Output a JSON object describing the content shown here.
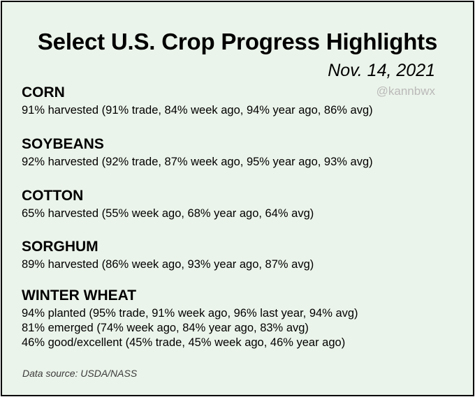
{
  "title": "Select U.S. Crop Progress Highlights",
  "date": "Nov. 14, 2021",
  "handle": "@kannbwx",
  "sections": [
    {
      "name": "CORN",
      "lines": [
        "91% harvested (91% trade, 84% week ago, 94% year ago, 86% avg)"
      ]
    },
    {
      "name": "SOYBEANS",
      "lines": [
        "92% harvested (92% trade, 87% week ago, 95% year ago, 93% avg)"
      ]
    },
    {
      "name": "COTTON",
      "lines": [
        "65% harvested (55% week ago, 68% year ago, 64% avg)"
      ]
    },
    {
      "name": "SORGHUM",
      "lines": [
        "89% harvested (86% week ago, 93% year ago, 87% avg)"
      ]
    },
    {
      "name": "WINTER WHEAT",
      "lines": [
        "94% planted (95% trade, 91% week ago, 96% last year, 94% avg)",
        "81% emerged (74% week ago, 84% year ago, 83% avg)",
        "46% good/excellent (45% trade, 45% week ago, 46% year ago)"
      ]
    }
  ],
  "source": "Data source: USDA/NASS"
}
